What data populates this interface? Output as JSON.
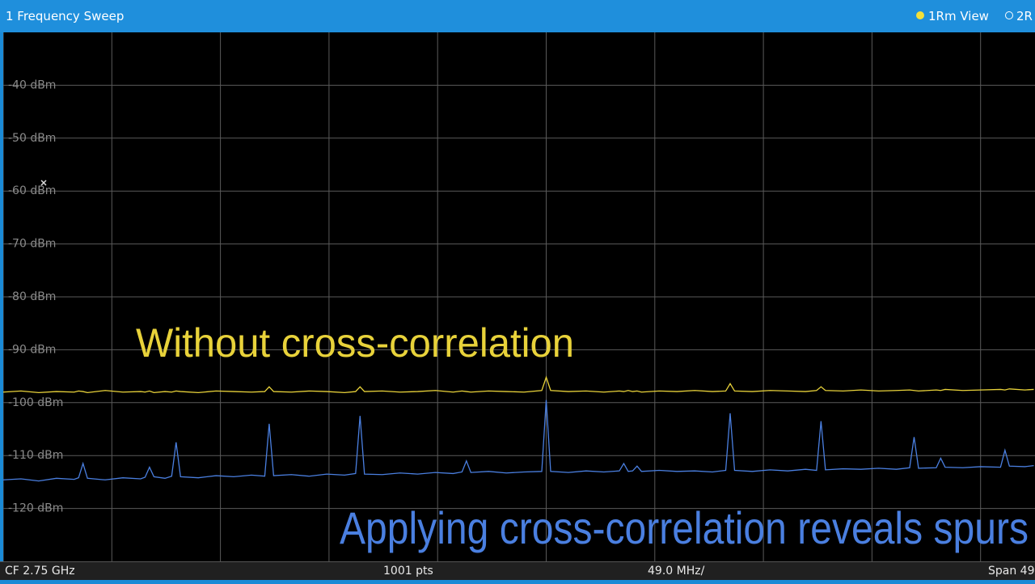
{
  "header": {
    "title": "1 Frequency Sweep",
    "legend": [
      "1Rm View",
      "2R"
    ]
  },
  "chart_data": {
    "type": "line",
    "x": [
      2505,
      2513,
      2521,
      2529,
      2537,
      2539,
      2541,
      2543,
      2551,
      2559,
      2567,
      2569,
      2571,
      2573,
      2578,
      2581,
      2583,
      2585,
      2593,
      2601,
      2609,
      2617,
      2623,
      2625,
      2627,
      2635,
      2643,
      2651,
      2659,
      2664,
      2666,
      2668,
      2676,
      2684,
      2692,
      2700,
      2708,
      2712,
      2714,
      2716,
      2724,
      2732,
      2740,
      2748,
      2750,
      2752,
      2760,
      2768,
      2776,
      2783,
      2785,
      2787,
      2789,
      2791,
      2793,
      2801,
      2809,
      2817,
      2825,
      2831,
      2833,
      2835,
      2843,
      2851,
      2859,
      2867,
      2872,
      2874,
      2876,
      2884,
      2892,
      2900,
      2908,
      2914,
      2916,
      2918,
      2926,
      2928,
      2930,
      2938,
      2946,
      2955,
      2957,
      2959,
      2966,
      2970
    ],
    "series": [
      {
        "name": "Without cross-correlation",
        "color": "#e8d23a",
        "values": [
          -98.0,
          -97.8,
          -98.1,
          -97.9,
          -98.0,
          -97.8,
          -97.9,
          -98.1,
          -97.7,
          -98.0,
          -97.9,
          -98.0,
          -97.8,
          -98.1,
          -97.9,
          -98.0,
          -97.8,
          -97.9,
          -98.1,
          -97.8,
          -97.9,
          -98.0,
          -97.9,
          -97.0,
          -97.9,
          -98.0,
          -97.8,
          -97.9,
          -98.1,
          -97.9,
          -97.0,
          -97.9,
          -97.8,
          -98.0,
          -97.9,
          -97.7,
          -98.0,
          -97.8,
          -97.9,
          -98.0,
          -97.8,
          -97.9,
          -98.0,
          -97.7,
          -95.2,
          -97.7,
          -97.9,
          -97.8,
          -98.0,
          -97.8,
          -97.9,
          -97.7,
          -97.9,
          -97.8,
          -98.0,
          -97.8,
          -97.9,
          -97.7,
          -97.9,
          -97.8,
          -96.4,
          -97.8,
          -97.9,
          -97.7,
          -97.8,
          -97.9,
          -97.7,
          -97.0,
          -97.7,
          -97.8,
          -97.6,
          -97.8,
          -97.7,
          -97.6,
          -97.7,
          -97.8,
          -97.6,
          -97.7,
          -97.5,
          -97.7,
          -97.6,
          -97.5,
          -97.6,
          -97.4,
          -97.6,
          -97.5
        ]
      },
      {
        "name": "Applying cross-correlation reveals spurs",
        "color": "#4a7fe0",
        "values": [
          -114.6,
          -114.4,
          -114.8,
          -114.3,
          -114.5,
          -114.2,
          -111.5,
          -114.3,
          -114.6,
          -114.2,
          -114.4,
          -114.1,
          -112.2,
          -114.0,
          -114.3,
          -113.9,
          -107.5,
          -114.0,
          -114.2,
          -113.8,
          -114.0,
          -113.7,
          -113.9,
          -104.0,
          -113.8,
          -113.6,
          -113.9,
          -113.5,
          -113.7,
          -113.4,
          -102.5,
          -113.5,
          -113.6,
          -113.3,
          -113.5,
          -113.2,
          -113.4,
          -113.1,
          -111.0,
          -113.2,
          -113.0,
          -113.3,
          -113.1,
          -113.0,
          -99.5,
          -113.0,
          -113.2,
          -112.9,
          -113.1,
          -112.9,
          -111.5,
          -113.0,
          -112.9,
          -112.0,
          -113.0,
          -112.8,
          -113.0,
          -112.9,
          -113.1,
          -112.8,
          -102.0,
          -112.8,
          -113.0,
          -112.7,
          -112.9,
          -112.6,
          -112.8,
          -103.5,
          -112.7,
          -112.5,
          -112.6,
          -112.4,
          -112.6,
          -112.3,
          -106.5,
          -112.4,
          -112.3,
          -110.5,
          -112.2,
          -112.3,
          -112.1,
          -112.2,
          -109.0,
          -112.0,
          -112.1,
          -111.9
        ]
      }
    ],
    "xlim": [
      2505,
      2995
    ],
    "xticks": [
      2505,
      2554,
      2603,
      2652,
      2701,
      2750,
      2799,
      2848,
      2897,
      2946,
      2995
    ],
    "ylim": [
      -130,
      -30
    ],
    "yticks": [
      {
        "value": -40,
        "label": "-40 dBm"
      },
      {
        "value": -50,
        "label": "-50 dBm"
      },
      {
        "value": -60,
        "label": "-60 dBm"
      },
      {
        "value": -70,
        "label": "-70 dBm"
      },
      {
        "value": -80,
        "label": "-80 dBm"
      },
      {
        "value": -90,
        "label": "-90 dBm"
      },
      {
        "value": -100,
        "label": "-100 dBm"
      },
      {
        "value": -110,
        "label": "-110 dBm"
      },
      {
        "value": -120,
        "label": "-120 dBm"
      }
    ],
    "grid": true
  },
  "footer": {
    "center_frequency": "CF 2.75 GHz",
    "points": "1001 pts",
    "per_division": "49.0 MHz/",
    "span": "Span 49"
  }
}
